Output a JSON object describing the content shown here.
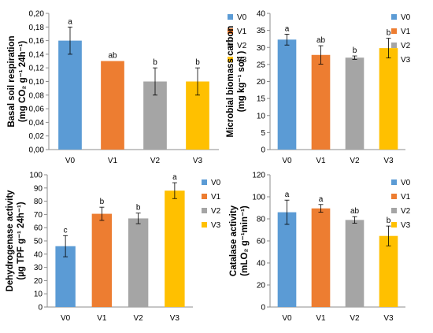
{
  "chart_data": [
    {
      "type": "bar",
      "categories": [
        "V0",
        "V1",
        "V2",
        "V3"
      ],
      "values": [
        0.16,
        0.13,
        0.1,
        0.1
      ],
      "errors": [
        0.02,
        0.0,
        0.02,
        0.02
      ],
      "letters": [
        "a",
        "ab",
        "b",
        "b"
      ],
      "colors": [
        "#5b9bd5",
        "#ed7d31",
        "#a5a5a5",
        "#ffc000"
      ],
      "ylim": [
        0,
        0.2
      ],
      "yticks": [
        "0,00",
        "0,02",
        "0,04",
        "0,06",
        "0,08",
        "0,10",
        "0,12",
        "0,14",
        "0,16",
        "0,18",
        "0,20"
      ],
      "ylabel_line1": "Basal soil respiration",
      "ylabel_line2": "(mg CO₂ g⁻¹ 24h⁻¹)",
      "legend": [
        "V0",
        "V1",
        "V2",
        "V3"
      ]
    },
    {
      "type": "bar",
      "categories": [
        "V0",
        "V1",
        "V2",
        "V3"
      ],
      "values": [
        32.3,
        27.8,
        27.0,
        29.8
      ],
      "errors": [
        1.6,
        2.7,
        0.5,
        2.9
      ],
      "letters": [
        "a",
        "ab",
        "b",
        "b"
      ],
      "colors": [
        "#5b9bd5",
        "#ed7d31",
        "#a5a5a5",
        "#ffc000"
      ],
      "ylim": [
        0,
        40
      ],
      "yticks": [
        "0",
        "5",
        "10",
        "15",
        "20",
        "25",
        "30",
        "35",
        "40"
      ],
      "ylabel_line1": "Microbial biomass carbon",
      "ylabel_line2": "(mg kg⁻¹ soil )",
      "legend": [
        "V0",
        "V1",
        "V2",
        "V3"
      ]
    },
    {
      "type": "bar",
      "categories": [
        "V0",
        "V1",
        "V2",
        "V3"
      ],
      "values": [
        46.0,
        70.5,
        67.0,
        88.0
      ],
      "errors": [
        8.0,
        5.0,
        4.0,
        6.0
      ],
      "letters": [
        "c",
        "b",
        "b",
        "a"
      ],
      "colors": [
        "#5b9bd5",
        "#ed7d31",
        "#a5a5a5",
        "#ffc000"
      ],
      "ylim": [
        0,
        100
      ],
      "yticks": [
        "0",
        "10",
        "20",
        "30",
        "40",
        "50",
        "60",
        "70",
        "80",
        "90",
        "100"
      ],
      "ylabel_line1": "Dehydrogenase activity",
      "ylabel_line2": "(µg TPF g⁻¹ 24h⁻¹)",
      "legend": [
        "V0",
        "V1",
        "V2",
        "V3"
      ]
    },
    {
      "type": "bar",
      "categories": [
        "V0",
        "V1",
        "V2",
        "V3"
      ],
      "values": [
        86.0,
        89.5,
        79.0,
        64.5
      ],
      "errors": [
        11.0,
        3.5,
        3.0,
        9.0
      ],
      "letters": [
        "a",
        "a",
        "ab",
        "b"
      ],
      "colors": [
        "#5b9bd5",
        "#ed7d31",
        "#a5a5a5",
        "#ffc000"
      ],
      "ylim": [
        0,
        120
      ],
      "yticks": [
        "0",
        "20",
        "40",
        "60",
        "80",
        "100",
        "120"
      ],
      "ylabel_line1": "Catalase activity",
      "ylabel_line2": "(mLO₂ g⁻¹min⁻¹)",
      "legend": [
        "V0",
        "V1",
        "V2",
        "V3"
      ]
    }
  ]
}
